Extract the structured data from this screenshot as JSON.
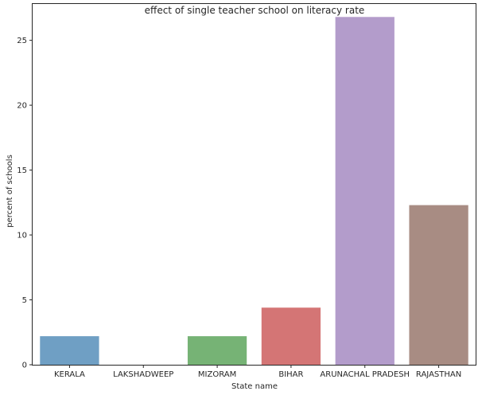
{
  "chart_data": {
    "type": "bar",
    "title": "effect of single teacher school on literacy rate",
    "xlabel": "State name",
    "ylabel": "percent of schools",
    "categories": [
      "KERALA",
      "LAKSHADWEEP",
      "MIZORAM",
      "BIHAR",
      "ARUNACHAL PRADESH",
      "RAJASTHAN"
    ],
    "values": [
      2.2,
      0,
      2.2,
      4.4,
      26.8,
      12.3
    ],
    "colors": [
      "#6f9fc4",
      "#e6a77a",
      "#76b375",
      "#d47575",
      "#b39ccb",
      "#a88c83"
    ],
    "ylim": [
      0,
      27.8
    ],
    "yticks": [
      0,
      5,
      10,
      15,
      20,
      25
    ],
    "grid": false
  }
}
